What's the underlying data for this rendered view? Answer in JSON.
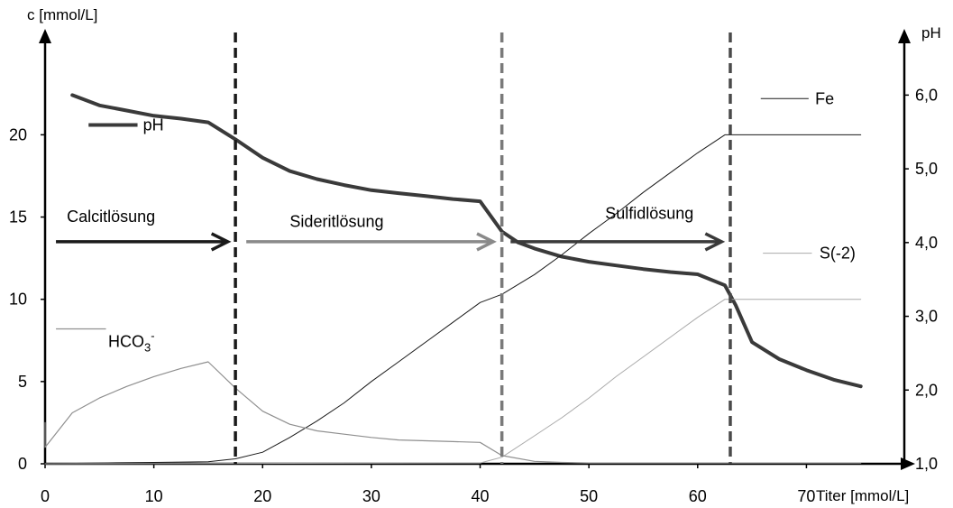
{
  "chart_data": {
    "type": "line",
    "y_left_label": "c [mmol/L]",
    "y_right_label": "pH",
    "x_label": "Titer [mmol/L]",
    "xlim": [
      0,
      79
    ],
    "ylim_left": [
      0,
      26
    ],
    "ylim_right": [
      1.0,
      6.8
    ],
    "x_ticks": [
      {
        "v": 0,
        "t": "0"
      },
      {
        "v": 10,
        "t": "10"
      },
      {
        "v": 20,
        "t": "20"
      },
      {
        "v": 30,
        "t": "30"
      },
      {
        "v": 40,
        "t": "40"
      },
      {
        "v": 50,
        "t": "50"
      },
      {
        "v": 60,
        "t": "60"
      },
      {
        "v": 70,
        "t": "70"
      }
    ],
    "y_left_ticks": [
      {
        "v": 0,
        "t": "0"
      },
      {
        "v": 5,
        "t": "5"
      },
      {
        "v": 10,
        "t": "10"
      },
      {
        "v": 15,
        "t": "15"
      },
      {
        "v": 20,
        "t": "20"
      }
    ],
    "y_right_ticks": [
      {
        "v": 1.0,
        "t": "1,0"
      },
      {
        "v": 2.0,
        "t": "2,0"
      },
      {
        "v": 3.0,
        "t": "3,0"
      },
      {
        "v": 4.0,
        "t": "4,0"
      },
      {
        "v": 5.0,
        "t": "5,0"
      },
      {
        "v": 6.0,
        "t": "6,0"
      }
    ],
    "series": [
      {
        "name": "pH",
        "axis": "right",
        "color": "#3a3a3a",
        "width": 4,
        "points": [
          [
            2.5,
            6.0
          ],
          [
            5,
            5.86
          ],
          [
            7.5,
            5.79
          ],
          [
            10,
            5.72
          ],
          [
            12.5,
            5.68
          ],
          [
            15,
            5.63
          ],
          [
            17.5,
            5.4
          ],
          [
            20,
            5.15
          ],
          [
            22.5,
            4.97
          ],
          [
            25,
            4.86
          ],
          [
            27.5,
            4.78
          ],
          [
            30,
            4.71
          ],
          [
            32.5,
            4.67
          ],
          [
            35,
            4.63
          ],
          [
            37.5,
            4.59
          ],
          [
            40,
            4.56
          ],
          [
            42,
            4.15
          ],
          [
            43.5,
            4.0
          ],
          [
            45,
            3.92
          ],
          [
            47.5,
            3.81
          ],
          [
            50,
            3.74
          ],
          [
            52.5,
            3.69
          ],
          [
            55,
            3.64
          ],
          [
            57.5,
            3.6
          ],
          [
            60,
            3.57
          ],
          [
            62.5,
            3.42
          ],
          [
            63.5,
            3.15
          ],
          [
            65,
            2.65
          ],
          [
            67.5,
            2.42
          ],
          [
            70,
            2.27
          ],
          [
            72.5,
            2.14
          ],
          [
            75,
            2.05
          ]
        ]
      },
      {
        "name": "Fe",
        "axis": "left",
        "color": "#1a1a1a",
        "width": 1,
        "points": [
          [
            0,
            0
          ],
          [
            5,
            0.05
          ],
          [
            10,
            0.08
          ],
          [
            15,
            0.12
          ],
          [
            17.5,
            0.3
          ],
          [
            20,
            0.7
          ],
          [
            22.5,
            1.6
          ],
          [
            25,
            2.6
          ],
          [
            27.5,
            3.7
          ],
          [
            30,
            5.0
          ],
          [
            32.5,
            6.2
          ],
          [
            35,
            7.4
          ],
          [
            37.5,
            8.6
          ],
          [
            40,
            9.8
          ],
          [
            42,
            10.3
          ],
          [
            45,
            11.5
          ],
          [
            47.5,
            12.7
          ],
          [
            50,
            14.0
          ],
          [
            52.5,
            15.2
          ],
          [
            55,
            16.5
          ],
          [
            57.5,
            17.7
          ],
          [
            60,
            18.9
          ],
          [
            62.5,
            20.0
          ],
          [
            75,
            20.0
          ]
        ]
      },
      {
        "name": "S(-2)",
        "axis": "left",
        "color": "#aaaaaa",
        "width": 1,
        "points": [
          [
            0,
            0
          ],
          [
            40,
            0.05
          ],
          [
            42,
            0.4
          ],
          [
            45,
            1.7
          ],
          [
            47.5,
            2.8
          ],
          [
            50,
            4.0
          ],
          [
            52.5,
            5.3
          ],
          [
            55,
            6.5
          ],
          [
            57.5,
            7.7
          ],
          [
            60,
            8.9
          ],
          [
            62.5,
            10.0
          ],
          [
            75,
            10.0
          ]
        ]
      },
      {
        "name": "HCO3-",
        "axis": "left",
        "color": "#8f8f8f",
        "width": 1.2,
        "points": [
          [
            0,
            2.5
          ],
          [
            0,
            1.0
          ],
          [
            2.5,
            3.1
          ],
          [
            5,
            4.0
          ],
          [
            7.5,
            4.7
          ],
          [
            10,
            5.3
          ],
          [
            12.5,
            5.8
          ],
          [
            15,
            6.2
          ],
          [
            17.5,
            4.6
          ],
          [
            20,
            3.2
          ],
          [
            22.5,
            2.4
          ],
          [
            25,
            2.0
          ],
          [
            27.5,
            1.8
          ],
          [
            30,
            1.6
          ],
          [
            32.5,
            1.45
          ],
          [
            35,
            1.4
          ],
          [
            37.5,
            1.35
          ],
          [
            40,
            1.3
          ],
          [
            42,
            0.5
          ],
          [
            45,
            0.15
          ],
          [
            47.5,
            0.08
          ],
          [
            50,
            0.05
          ],
          [
            55,
            0.05
          ],
          [
            60,
            0.05
          ],
          [
            75,
            0.05
          ]
        ]
      }
    ],
    "vlines": [
      {
        "x": 17.5,
        "color": "#1a1a1a"
      },
      {
        "x": 42.0,
        "color": "#7a7a7a"
      },
      {
        "x": 63.0,
        "color": "#4a4a4a"
      }
    ],
    "arrows": [
      {
        "label": "Calcitlösung",
        "color": "#1a1a1a",
        "x1": 1.0,
        "x2": 16.8,
        "y": 13.5,
        "label_x": 2.0,
        "label_y": 14.7
      },
      {
        "label": "Sideritlösung",
        "color": "#8a8a8a",
        "x1": 18.5,
        "x2": 41.2,
        "y": 13.5,
        "label_x": 22.5,
        "label_y": 14.4
      },
      {
        "label": "Sulfidlösung",
        "color": "#3a3a3a",
        "x1": 42.8,
        "x2": 62.2,
        "y": 13.5,
        "label_x": 51.5,
        "label_y": 14.9
      }
    ],
    "legend": [
      {
        "key": "pH",
        "text": "pH",
        "color": "#3a3a3a",
        "width": 4,
        "x1": 4.0,
        "x2": 8.5,
        "y": 20.6,
        "text_x": 9.0
      },
      {
        "key": "fe",
        "text": "Fe",
        "color": "#1a1a1a",
        "width": 1,
        "x1": 65.8,
        "x2": 70.2,
        "y": 22.2,
        "text_x": 70.8
      },
      {
        "key": "s2",
        "text": "S(-2)",
        "color": "#aaaaaa",
        "width": 1,
        "x1": 66.0,
        "x2": 70.5,
        "y": 12.8,
        "text_x": 71.2
      },
      {
        "key": "hco3",
        "text": "HCO3-",
        "color": "#8f8f8f",
        "width": 1.2,
        "x1": 1.0,
        "x2": 5.6,
        "y": 8.2,
        "text_x": 5.8
      }
    ]
  }
}
